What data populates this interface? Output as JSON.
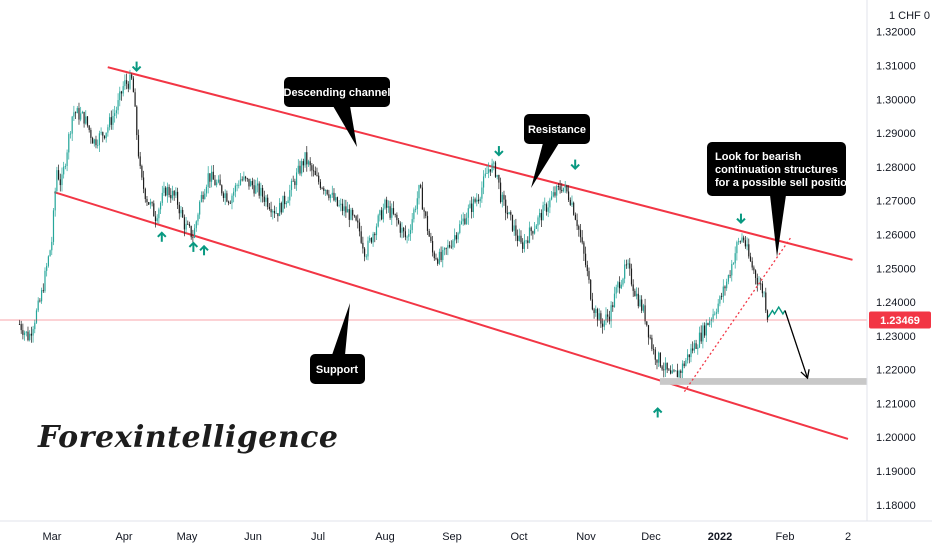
{
  "header": {
    "pair_label": "1 CHF 0"
  },
  "brand": {
    "text": "Forexintelligence"
  },
  "price_tag": {
    "value": "1.23469",
    "color": "#f23645"
  },
  "annotations": {
    "descending_channel": "Descending channel",
    "resistance": "Resistance",
    "support": "Support",
    "note_lines": [
      "Look for bearish",
      "continuation structures",
      "for a possible sell positions"
    ]
  },
  "colors": {
    "channel_line": "#f23645",
    "bull_candle": "#26a69a",
    "bear_candle": "#1d1d1d",
    "arrow": "#089981",
    "callout_bg": "#000000",
    "target_zone": "#c8c8c8"
  },
  "chart_data": {
    "type": "candlestick",
    "y_axis": {
      "ticks": [
        "1.32000",
        "1.31000",
        "1.30000",
        "1.29000",
        "1.28000",
        "1.27000",
        "1.26000",
        "1.25000",
        "1.24000",
        "1.23000",
        "1.22000",
        "1.21000",
        "1.20000",
        "1.19000",
        "1.18000"
      ],
      "range": [
        1.1755,
        1.3285
      ],
      "position": "right"
    },
    "x_axis": {
      "ticks": [
        "Mar",
        "Apr",
        "May",
        "Jun",
        "Jul",
        "Aug",
        "Sep",
        "Oct",
        "Nov",
        "Dec",
        "2022",
        "Feb",
        "2"
      ],
      "bold_ticks": [
        "2022"
      ]
    },
    "last_price": 1.23469,
    "price_path": [
      [
        "2021-02-15",
        1.2335
      ],
      [
        "2021-02-19",
        1.2295
      ],
      [
        "2021-02-24",
        1.2405
      ],
      [
        "2021-03-01",
        1.2585
      ],
      [
        "2021-03-03",
        1.2795
      ],
      [
        "2021-03-05",
        1.2745
      ],
      [
        "2021-03-10",
        1.2965
      ],
      [
        "2021-03-15",
        1.2945
      ],
      [
        "2021-03-19",
        1.2875
      ],
      [
        "2021-03-24",
        1.2905
      ],
      [
        "2021-03-29",
        1.2975
      ],
      [
        "2021-04-01",
        1.3045
      ],
      [
        "2021-04-05",
        1.3055
      ],
      [
        "2021-04-07",
        1.2905
      ],
      [
        "2021-04-09",
        1.2765
      ],
      [
        "2021-04-12",
        1.2705
      ],
      [
        "2021-04-16",
        1.2655
      ],
      [
        "2021-04-21",
        1.2735
      ],
      [
        "2021-04-26",
        1.2705
      ],
      [
        "2021-04-30",
        1.2625
      ],
      [
        "2021-05-04",
        1.2595
      ],
      [
        "2021-05-07",
        1.2695
      ],
      [
        "2021-05-11",
        1.2775
      ],
      [
        "2021-05-17",
        1.2735
      ],
      [
        "2021-05-21",
        1.2705
      ],
      [
        "2021-05-26",
        1.2765
      ],
      [
        "2021-06-01",
        1.2745
      ],
      [
        "2021-06-07",
        1.2705
      ],
      [
        "2021-06-12",
        1.2665
      ],
      [
        "2021-06-17",
        1.2715
      ],
      [
        "2021-06-22",
        1.2785
      ],
      [
        "2021-06-25",
        1.2825
      ],
      [
        "2021-06-30",
        1.2765
      ],
      [
        "2021-07-05",
        1.2735
      ],
      [
        "2021-07-10",
        1.2685
      ],
      [
        "2021-07-15",
        1.2665
      ],
      [
        "2021-07-20",
        1.2615
      ],
      [
        "2021-07-23",
        1.2545
      ],
      [
        "2021-07-27",
        1.2615
      ],
      [
        "2021-08-01",
        1.2685
      ],
      [
        "2021-08-06",
        1.2645
      ],
      [
        "2021-08-11",
        1.2585
      ],
      [
        "2021-08-17",
        1.2735
      ],
      [
        "2021-08-23",
        1.2545
      ],
      [
        "2021-08-27",
        1.2525
      ],
      [
        "2021-09-02",
        1.2595
      ],
      [
        "2021-09-08",
        1.2665
      ],
      [
        "2021-09-13",
        1.2715
      ],
      [
        "2021-09-18",
        1.2805
      ],
      [
        "2021-09-21",
        1.2785
      ],
      [
        "2021-09-23",
        1.2705
      ],
      [
        "2021-09-27",
        1.2645
      ],
      [
        "2021-10-02",
        1.2565
      ],
      [
        "2021-10-06",
        1.2605
      ],
      [
        "2021-10-12",
        1.2665
      ],
      [
        "2021-10-17",
        1.2715
      ],
      [
        "2021-10-21",
        1.2745
      ],
      [
        "2021-10-25",
        1.2705
      ],
      [
        "2021-10-28",
        1.2635
      ],
      [
        "2021-11-01",
        1.2505
      ],
      [
        "2021-11-04",
        1.2395
      ],
      [
        "2021-11-08",
        1.2335
      ],
      [
        "2021-11-12",
        1.2365
      ],
      [
        "2021-11-16",
        1.2455
      ],
      [
        "2021-11-20",
        1.2505
      ],
      [
        "2021-11-24",
        1.2425
      ],
      [
        "2021-11-28",
        1.2365
      ],
      [
        "2021-12-02",
        1.2255
      ],
      [
        "2021-12-06",
        1.2215
      ],
      [
        "2021-12-10",
        1.2175
      ],
      [
        "2021-12-14",
        1.2195
      ],
      [
        "2021-12-18",
        1.2245
      ],
      [
        "2021-12-22",
        1.2285
      ],
      [
        "2021-12-27",
        1.2345
      ],
      [
        "2022-01-01",
        1.2405
      ],
      [
        "2022-01-05",
        1.2475
      ],
      [
        "2022-01-09",
        1.2565
      ],
      [
        "2022-01-12",
        1.2595
      ],
      [
        "2022-01-15",
        1.2525
      ],
      [
        "2022-01-19",
        1.2465
      ],
      [
        "2022-01-22",
        1.2425
      ],
      [
        "2022-01-24",
        1.2347
      ]
    ],
    "channel": {
      "upper": [
        [
          "2021-03-25",
          1.3095
        ],
        [
          "2022-03-03",
          1.2525
        ]
      ],
      "lower": [
        [
          "2021-03-02",
          1.2725
        ],
        [
          "2022-03-01",
          1.1995
        ]
      ],
      "color": "#f23645"
    },
    "projection": {
      "dotted_trendline": [
        [
          "2021-12-16",
          1.2135
        ],
        [
          "2022-02-04",
          1.2595
        ]
      ],
      "zigzag": [
        [
          "2022-01-24",
          1.2355
        ],
        [
          "2022-01-26",
          1.2375
        ],
        [
          "2022-01-27",
          1.2365
        ],
        [
          "2022-01-29",
          1.2385
        ],
        [
          "2022-01-31",
          1.2365
        ],
        [
          "2022-02-01",
          1.2375
        ]
      ],
      "arrow": [
        [
          "2022-02-01",
          1.2375
        ],
        [
          "2022-02-11",
          1.2175
        ]
      ],
      "target_zone": [
        [
          "2021-12-05",
          "2022-03-26"
        ],
        [
          1.2155,
          1.2175
        ]
      ]
    },
    "markers": {
      "down": [
        [
          "2021-04-07",
          1.3085
        ],
        [
          "2021-09-22",
          1.2835
        ],
        [
          "2021-10-27",
          1.2795
        ],
        [
          "2022-01-11",
          1.2635
        ]
      ],
      "up": [
        [
          "2021-04-19",
          1.2605
        ],
        [
          "2021-05-04",
          1.2575
        ],
        [
          "2021-05-09",
          1.2565
        ],
        [
          "2021-12-04",
          1.2085
        ]
      ]
    }
  }
}
